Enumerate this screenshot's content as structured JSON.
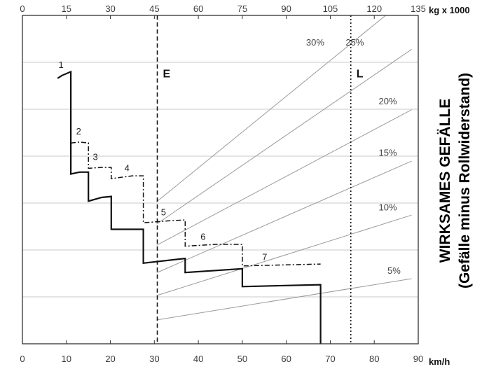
{
  "chart_data": {
    "type": "line",
    "x_bottom": {
      "ticks": [
        "0",
        "10",
        "20",
        "30",
        "40",
        "50",
        "60",
        "70",
        "80",
        "90"
      ],
      "unit": "km/h",
      "range": [
        0,
        90
      ]
    },
    "x_top": {
      "ticks": [
        "0",
        "15",
        "30",
        "45",
        "60",
        "75",
        "90",
        "105",
        "120",
        "135"
      ],
      "unit": "kg x 1000",
      "range": [
        0,
        135
      ]
    },
    "y_title": "WIRKSAMES GEFÄLLE",
    "y_subtitle": "(Gefälle minus Rollwiderstand)",
    "y_range": [
      0,
      35
    ],
    "grid": "horizontal",
    "vertical_markers": [
      {
        "label": "E",
        "x_top": 46,
        "style": "dashed"
      },
      {
        "label": "L",
        "x_top": 112,
        "style": "dotted"
      }
    ],
    "grade_lines": [
      {
        "label": "5%",
        "grade": 5
      },
      {
        "label": "10%",
        "grade": 10
      },
      {
        "label": "15%",
        "grade": 15
      },
      {
        "label": "20%",
        "grade": 20
      },
      {
        "label": "25%",
        "grade": 25
      },
      {
        "label": "30%",
        "grade": 30
      }
    ],
    "series": [
      {
        "style": "solid",
        "points": [
          [
            8,
            28.3
          ],
          [
            9,
            28.6
          ],
          [
            11,
            29
          ],
          [
            11,
            18.1
          ],
          [
            13,
            18.3
          ],
          [
            15,
            18.3
          ],
          [
            15,
            15.2
          ],
          [
            18,
            15.6
          ],
          [
            20.2,
            15.7
          ],
          [
            20.2,
            12.2
          ],
          [
            27.5,
            12.2
          ],
          [
            27.5,
            8.6
          ],
          [
            37,
            9.1
          ],
          [
            37,
            7.6
          ],
          [
            50,
            8.0
          ],
          [
            50,
            6.1
          ],
          [
            67.8,
            6.3
          ],
          [
            67.8,
            0
          ]
        ]
      },
      {
        "style": "dash-dot",
        "points": [
          [
            11,
            21.4
          ],
          [
            13,
            21.5
          ],
          [
            15,
            21.4
          ],
          [
            15,
            18.7
          ],
          [
            18,
            18.8
          ],
          [
            20.2,
            18.8
          ],
          [
            20.2,
            17.6
          ],
          [
            25,
            17.9
          ],
          [
            27.5,
            17.9
          ],
          [
            27.5,
            12.9
          ],
          [
            33,
            13.1
          ],
          [
            37,
            13.2
          ],
          [
            37,
            10.4
          ],
          [
            44,
            10.6
          ],
          [
            50,
            10.6
          ],
          [
            50,
            8.3
          ],
          [
            67.8,
            8.5
          ]
        ]
      }
    ],
    "gear_labels": [
      "1",
      "2",
      "3",
      "4",
      "5",
      "6",
      "7"
    ]
  }
}
